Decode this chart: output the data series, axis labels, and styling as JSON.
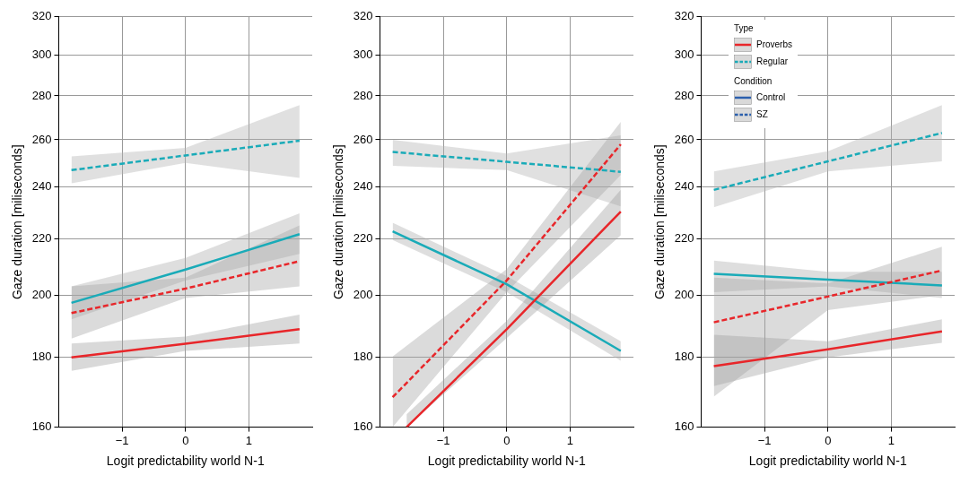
{
  "chart_data": [
    {
      "type": "line",
      "xlabel": "Logit predictability world N-1",
      "ylabel": "Gaze duration [miliseconds]",
      "log": "y",
      "grid": true,
      "xlim": [
        -2,
        2
      ],
      "xticks": [
        -1,
        0,
        1
      ],
      "ylim": [
        160,
        320
      ],
      "yticks": [
        160,
        180,
        200,
        220,
        240,
        260,
        280,
        300,
        320
      ],
      "series": [
        {
          "color": "#e8262a",
          "line_style": "solid",
          "x": [
            -1.8,
            0,
            1.8
          ],
          "values": [
            180,
            184.2,
            188.8
          ],
          "lower": [
            176,
            182,
            184.3
          ],
          "upper": [
            184.3,
            186.5,
            193.5
          ]
        },
        {
          "color": "#e8262a",
          "line_style": "dashed",
          "x": [
            -1.8,
            0,
            1.8
          ],
          "values": [
            194,
            202.2,
            211.8
          ],
          "lower": [
            185.8,
            199,
            203
          ],
          "upper": [
            203,
            206,
            225
          ]
        },
        {
          "color": "#1aabb8",
          "line_style": "solid",
          "x": [
            -1.8,
            0,
            1.8
          ],
          "values": [
            197.4,
            208.8,
            221.7
          ],
          "lower": [
            192,
            205,
            214.4
          ],
          "upper": [
            203,
            213,
            229.6
          ]
        },
        {
          "color": "#1aabb8",
          "line_style": "dashed",
          "x": [
            -1.8,
            0,
            1.8
          ],
          "values": [
            247,
            253.2,
            259.6
          ],
          "lower": [
            241.6,
            250,
            243.8
          ],
          "upper": [
            252.8,
            256.5,
            275.7
          ]
        }
      ]
    },
    {
      "type": "line",
      "xlabel": "Logit predictability world N-1",
      "ylabel": "Gaze duration [miliseconds]",
      "log": "y",
      "grid": true,
      "xlim": [
        -2,
        2
      ],
      "xticks": [
        -1,
        0,
        1
      ],
      "ylim": [
        160,
        320
      ],
      "yticks": [
        160,
        180,
        200,
        220,
        240,
        260,
        280,
        300,
        320
      ],
      "series": [
        {
          "color": "#e8262a",
          "line_style": "solid",
          "x": [
            -1.58,
            0,
            1.8
          ],
          "values": [
            160,
            188.8,
            230.3
          ],
          "lower": [
            160,
            186,
            221.3
          ],
          "upper": [
            163.5,
            191.5,
            238.9
          ]
        },
        {
          "color": "#e8262a",
          "line_style": "dashed",
          "x": [
            -1.8,
            0,
            1.8
          ],
          "values": [
            168.3,
            205,
            258
          ],
          "lower": [
            160,
            201,
            245
          ],
          "upper": [
            180.3,
            209,
            268
          ]
        },
        {
          "color": "#1aabb8",
          "line_style": "solid",
          "x": [
            -1.8,
            0,
            1.8
          ],
          "values": [
            222.7,
            203.7,
            182
          ],
          "lower": [
            219.5,
            201,
            179
          ],
          "upper": [
            226,
            206.5,
            185
          ]
        },
        {
          "color": "#1aabb8",
          "line_style": "dashed",
          "x": [
            -1.8,
            0,
            1.8
          ],
          "values": [
            254.7,
            250.5,
            246.3
          ],
          "lower": [
            248.8,
            247,
            232.3
          ],
          "upper": [
            260,
            254,
            262
          ]
        }
      ]
    },
    {
      "type": "line",
      "xlabel": "Logit predictability world N-1",
      "ylabel": "Gaze duration [miliseconds]",
      "log": "y",
      "grid": true,
      "xlim": [
        -2,
        2
      ],
      "xticks": [
        -1,
        0,
        1
      ],
      "ylim": [
        160,
        320
      ],
      "yticks": [
        160,
        180,
        200,
        220,
        240,
        260,
        280,
        300,
        320
      ],
      "annotations": [
        "Type",
        "Proverbs",
        "Regular",
        "Condition",
        "Control",
        "SZ"
      ],
      "series": [
        {
          "color": "#e8262a",
          "line_style": "solid",
          "x": [
            -1.8,
            0,
            1.8
          ],
          "values": [
            177.4,
            182.5,
            188.1
          ],
          "lower": [
            171.5,
            180,
            184.5
          ],
          "upper": [
            187,
            185,
            192
          ]
        },
        {
          "color": "#e8262a",
          "line_style": "dashed",
          "x": [
            -1.8,
            0,
            1.8
          ],
          "values": [
            191,
            199.5,
            208.5
          ],
          "lower": [
            168.5,
            195,
            200
          ],
          "upper": [
            206,
            204,
            217
          ]
        },
        {
          "color": "#1aabb8",
          "line_style": "solid",
          "x": [
            -1.8,
            0,
            1.8
          ],
          "values": [
            207.3,
            205.3,
            203.3
          ],
          "lower": [
            201,
            203,
            199
          ],
          "upper": [
            212,
            208,
            208
          ]
        },
        {
          "color": "#1aabb8",
          "line_style": "dashed",
          "x": [
            -1.8,
            0,
            1.8
          ],
          "values": [
            238.9,
            250.7,
            263
          ],
          "lower": [
            232,
            246.5,
            250.7
          ],
          "upper": [
            246.5,
            255,
            275.7
          ]
        }
      ]
    }
  ]
}
